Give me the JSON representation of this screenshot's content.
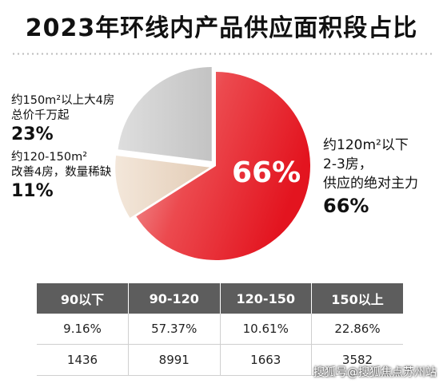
{
  "title": "2023年环线内产品供应面积段占比",
  "chart_data": [
    {
      "type": "pie",
      "slices": [
        {
          "label": "约120m²以下 2-3房，供应的绝对主力",
          "value": 66,
          "color": "#e8202a"
        },
        {
          "label": "约120-150m² 改善4房，数量稀缺",
          "value": 11,
          "color": "#ead8c7"
        },
        {
          "label": "约150m²以上大4房 总价千万起",
          "value": 23,
          "color": "#cfcfcf"
        }
      ]
    },
    {
      "type": "table",
      "columns": [
        "90以下",
        "90-120",
        "120-150",
        "150以上"
      ],
      "rows": [
        [
          "9.16%",
          "57.37%",
          "10.61%",
          "22.86%"
        ],
        [
          "1436",
          "8991",
          "1663",
          "3582"
        ]
      ]
    }
  ],
  "labels": {
    "big": {
      "line1": "约150m²以上大4房",
      "line2": "总价千万起",
      "pct": "23%"
    },
    "mid": {
      "line1": "约120-150m²",
      "line2": "改善4房，数量稀缺",
      "pct": "11%"
    },
    "main": {
      "line1": "约120m²以下",
      "line2": "2-3房，",
      "line3": "供应的绝对主力",
      "pct": "66%"
    },
    "center_pct": "66%"
  },
  "watermark": "搜狐号@搜狐焦点苏州站"
}
